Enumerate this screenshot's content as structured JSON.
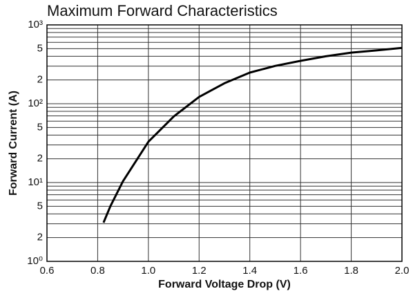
{
  "chart_data": {
    "type": "line",
    "title": "Maximum Forward Characteristics",
    "xlabel": "Forward Voltage Drop (V)",
    "ylabel": "Forward Current (A)",
    "x": [
      0.823,
      0.85,
      0.9,
      1.0,
      1.1,
      1.2,
      1.3,
      1.4,
      1.5,
      1.6,
      1.7,
      1.8,
      1.9,
      2.0
    ],
    "values": [
      3.1,
      5,
      10.4,
      33,
      69,
      122,
      182,
      248,
      302,
      350,
      400,
      445,
      475,
      510
    ],
    "color": "#000000",
    "xlim": [
      0.6,
      2.0
    ],
    "xticks": [
      0.6,
      0.8,
      {
        "value": 1,
        "label": "1.0"
      },
      1.2,
      1.4,
      1.6,
      1.8,
      {
        "value": 2,
        "label": "2.0"
      }
    ],
    "ylim": [
      1,
      1000
    ],
    "ylog": true,
    "yticks": [
      {
        "value": 1,
        "label": "10⁰"
      },
      2,
      5,
      {
        "value": 10,
        "label": "10¹"
      },
      {
        "value": 20,
        "label": "2"
      },
      {
        "value": 50,
        "label": "5"
      },
      {
        "value": 100,
        "label": "10²"
      },
      {
        "value": 200,
        "label": "2"
      },
      {
        "value": 500,
        "label": "5"
      },
      {
        "value": 1000,
        "label": "10³"
      }
    ],
    "yminorticks": [
      3,
      4,
      6,
      7,
      8,
      9,
      30,
      40,
      60,
      70,
      80,
      90,
      300,
      400,
      600,
      700,
      800,
      900
    ],
    "grid": true
  }
}
